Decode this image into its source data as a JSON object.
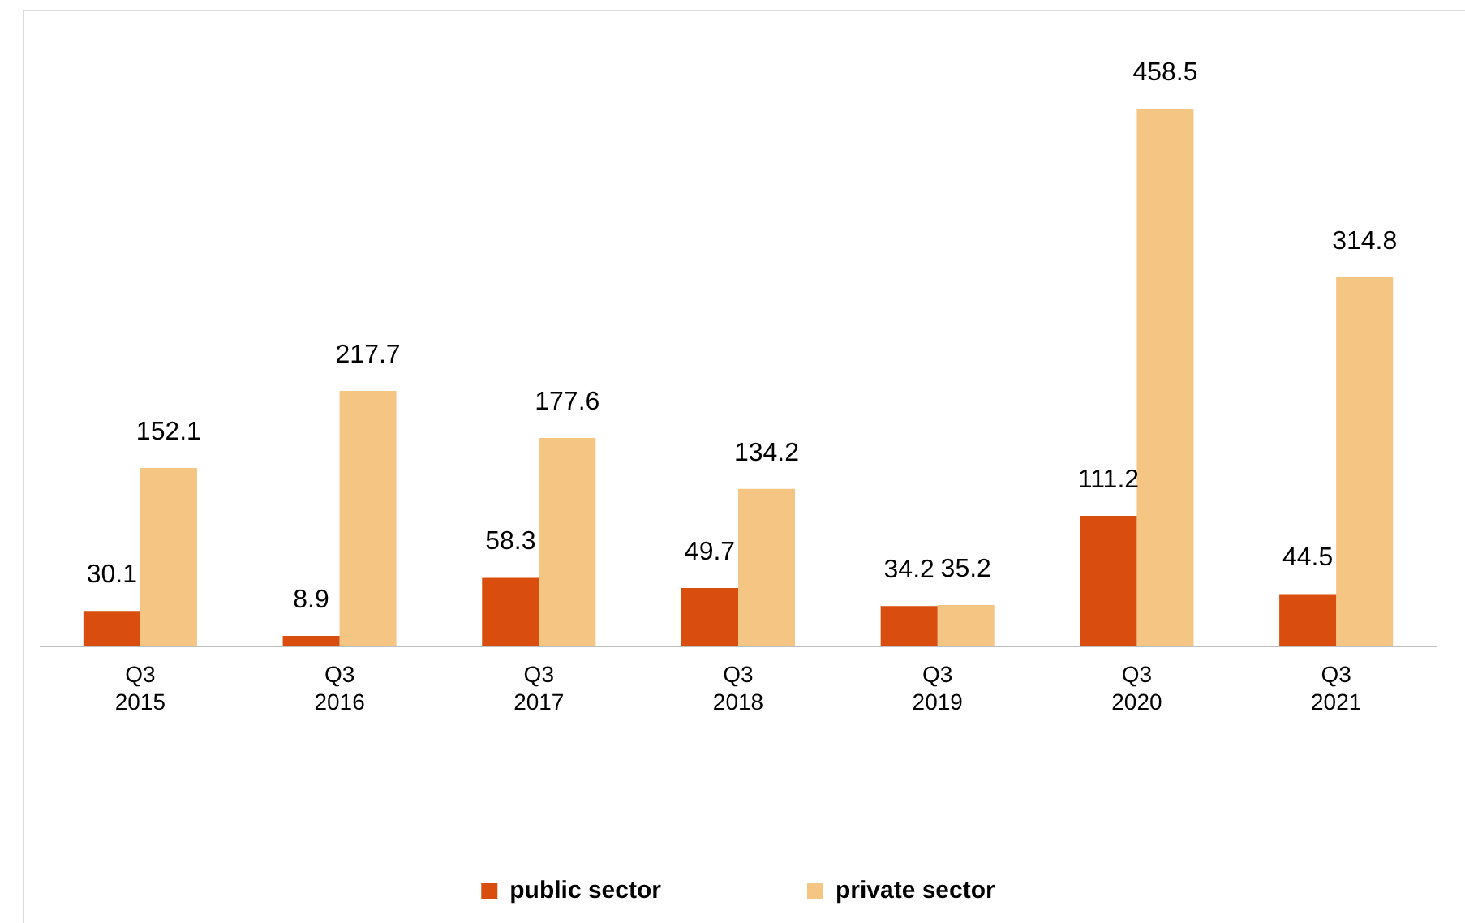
{
  "chart_data": {
    "type": "bar",
    "categories": [
      "Q3 2015",
      "Q3 2016",
      "Q3 2017",
      "Q3 2018",
      "Q3 2019",
      "Q3 2020",
      "Q3 2021"
    ],
    "series": [
      {
        "name": "public sector",
        "color": "#d94e0f",
        "values": [
          30.1,
          8.9,
          58.3,
          49.7,
          34.2,
          111.2,
          44.5
        ]
      },
      {
        "name": "private sector",
        "color": "#f5c584",
        "values": [
          152.1,
          217.7,
          177.6,
          134.2,
          35.2,
          458.5,
          314.8
        ]
      }
    ],
    "data_labels": true,
    "legend": "bottom",
    "grid": false
  }
}
